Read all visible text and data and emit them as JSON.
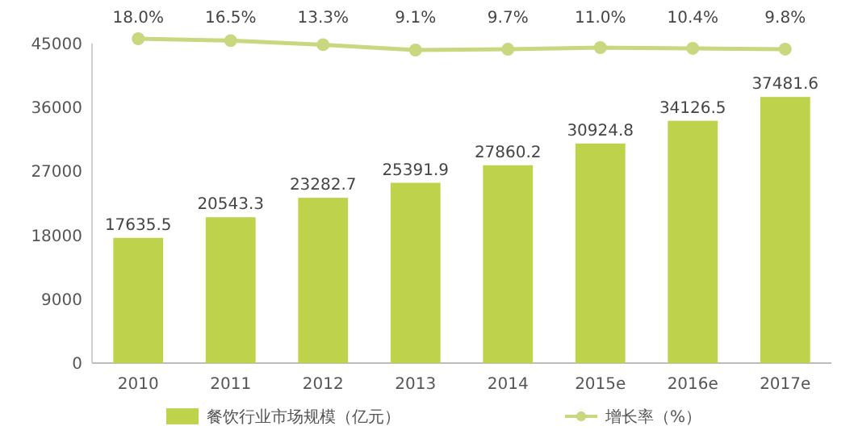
{
  "chart_data": {
    "type": "bar",
    "categories": [
      "2010",
      "2011",
      "2012",
      "2013",
      "2014",
      "2015e",
      "2016e",
      "2017e"
    ],
    "series": [
      {
        "name": "餐饮行业市场规模（亿元）",
        "color": "#bfd24b",
        "values": [
          17635.5,
          20543.3,
          23282.7,
          25391.9,
          27860.2,
          30924.8,
          34126.5,
          37481.6
        ]
      },
      {
        "name": "增长率（%）",
        "type": "line",
        "axis": "y2",
        "color": "#c9d77e",
        "values": [
          18.0,
          16.5,
          13.3,
          9.1,
          9.7,
          11.0,
          10.4,
          9.8
        ],
        "value_labels": [
          "18.0%",
          "16.5%",
          "13.3%",
          "9.1%",
          "9.7%",
          "11.0%",
          "10.4%",
          "9.8%"
        ]
      }
    ],
    "ylim": [
      0,
      45000
    ],
    "yticks": [
      0,
      9000,
      18000,
      27000,
      36000,
      45000
    ],
    "data_labels": true,
    "grid": false,
    "legend": "bottom",
    "marker": "circle",
    "line_style": "solid",
    "tick_labels": "xy"
  }
}
